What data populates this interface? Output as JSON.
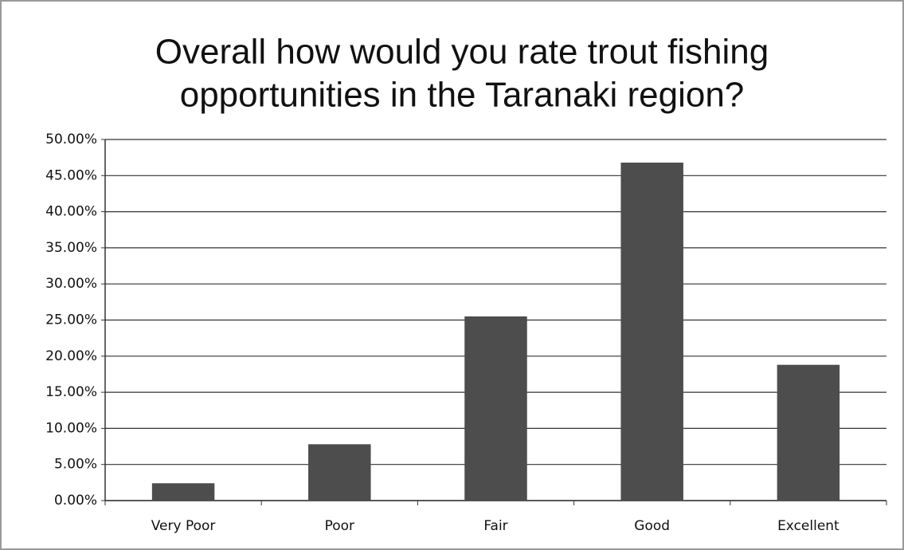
{
  "chart_data": {
    "type": "bar",
    "title": [
      "Overall how would you rate trout fishing",
      "opportunities in the Taranaki region?"
    ],
    "categories": [
      "Very Poor",
      "Poor",
      "Fair",
      "Good",
      "Excellent"
    ],
    "values": [
      2.4,
      7.8,
      25.5,
      46.8,
      18.8
    ],
    "color": "#4d4d4d",
    "ylim": [
      0,
      50
    ],
    "yticks": [
      {
        "value": 0,
        "label": "0.00%"
      },
      {
        "value": 5,
        "label": "5.00%"
      },
      {
        "value": 10,
        "label": "10.00%"
      },
      {
        "value": 15,
        "label": "15.00%"
      },
      {
        "value": 20,
        "label": "20.00%"
      },
      {
        "value": 25,
        "label": "25.00%"
      },
      {
        "value": 30,
        "label": "30.00%"
      },
      {
        "value": 35,
        "label": "35.00%"
      },
      {
        "value": 40,
        "label": "40.00%"
      },
      {
        "value": 45,
        "label": "45.00%"
      },
      {
        "value": 50,
        "label": "50.00%"
      }
    ],
    "grid": true
  }
}
